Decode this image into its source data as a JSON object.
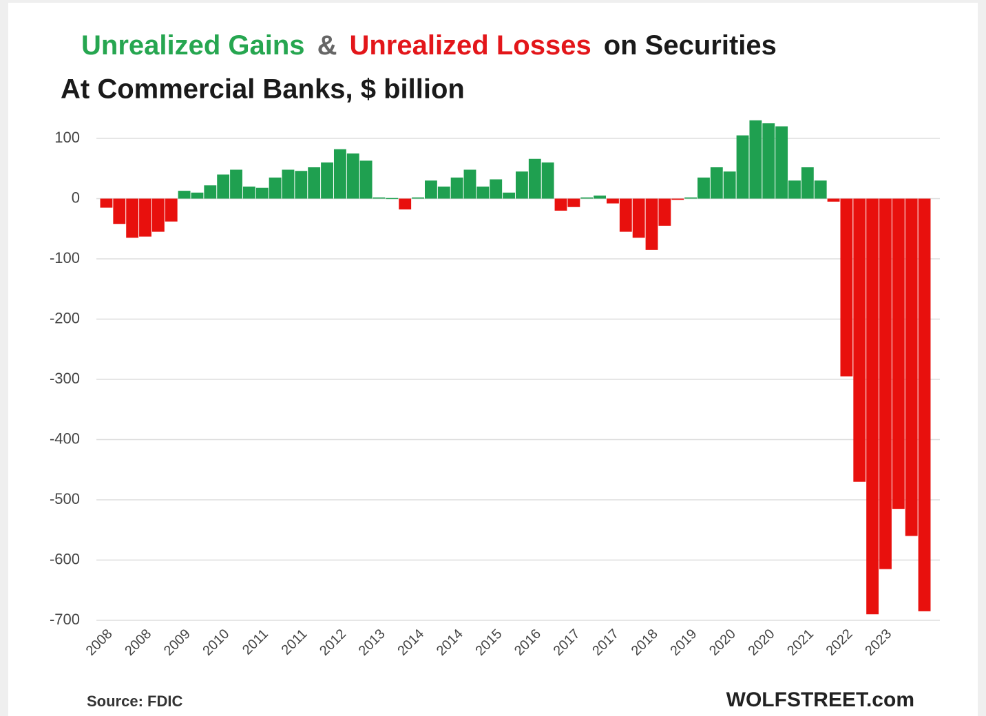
{
  "chart_data": {
    "type": "bar",
    "title_parts": [
      {
        "text": "Unrealized Gains",
        "color": "#26a650"
      },
      {
        "text": "&",
        "color": "#666666"
      },
      {
        "text": "Unrealized Losses",
        "color": "#e3161a"
      },
      {
        "text": "on Securities",
        "color": "#1a1a1a"
      }
    ],
    "subtitle": "At Commercial  Banks, $ billion",
    "source": "Source: FDIC",
    "credit": "WOLFSTREET.com",
    "categories": [
      "2008",
      null,
      null,
      "2008",
      null,
      null,
      "2009",
      null,
      null,
      "2010",
      null,
      null,
      "2011",
      null,
      null,
      "2011",
      null,
      null,
      "2012",
      null,
      null,
      "2013",
      null,
      null,
      "2014",
      null,
      null,
      "2014",
      null,
      null,
      "2015",
      null,
      null,
      "2016",
      null,
      null,
      "2017",
      null,
      null,
      "2017",
      null,
      null,
      "2018",
      null,
      null,
      "2019",
      null,
      null,
      "2020",
      null,
      null,
      "2020",
      null,
      null,
      "2021",
      null,
      null,
      "2022",
      null,
      null,
      "2023",
      null,
      null,
      null
    ],
    "values": [
      -15,
      -42,
      -65,
      -63,
      -55,
      -38,
      13,
      10,
      22,
      40,
      48,
      20,
      18,
      35,
      48,
      46,
      52,
      60,
      82,
      75,
      63,
      2,
      1,
      -18,
      2,
      30,
      20,
      35,
      48,
      20,
      32,
      10,
      45,
      66,
      60,
      -20,
      -14,
      2,
      5,
      -8,
      -55,
      -65,
      -85,
      -45,
      -2,
      2,
      35,
      52,
      45,
      105,
      130,
      125,
      120,
      30,
      52,
      30,
      -5,
      -295,
      -470,
      -690,
      -615,
      -515,
      -560,
      -685
    ],
    "positive_color": "#1fa050",
    "negative_color": "#e8100d",
    "ylim": [
      -720,
      110
    ],
    "yticks": [
      100,
      0,
      -100,
      -200,
      -300,
      -400,
      -500,
      -600,
      -700
    ],
    "grid": true
  }
}
